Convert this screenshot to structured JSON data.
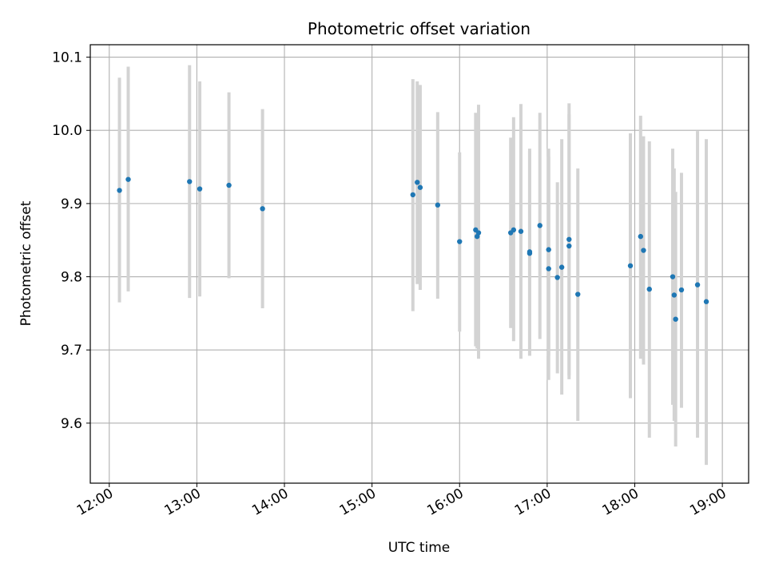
{
  "chart_data": {
    "type": "scatter",
    "title": "Photometric offset variation",
    "xlabel": "UTC time",
    "ylabel": "Photometric offset",
    "x_ticks": [
      "12:00",
      "13:00",
      "14:00",
      "15:00",
      "16:00",
      "17:00",
      "18:00",
      "19:00"
    ],
    "y_ticks": [
      "9.6",
      "9.7",
      "9.8",
      "9.9",
      "10.0",
      "10.1"
    ],
    "xlim": [
      "11:47",
      "19:18"
    ],
    "ylim": [
      9.518,
      10.117
    ],
    "grid": true,
    "colors": {
      "points": "#1f77b4",
      "errorbars": "#d3d3d3",
      "grid": "#b0b0b0"
    },
    "points": [
      {
        "t": "12:07",
        "y": 9.918,
        "lo": 9.765,
        "hi": 10.072
      },
      {
        "t": "12:13",
        "y": 9.933,
        "lo": 9.78,
        "hi": 10.087
      },
      {
        "t": "12:55",
        "y": 9.93,
        "lo": 9.771,
        "hi": 10.089
      },
      {
        "t": "13:02",
        "y": 9.92,
        "lo": 9.773,
        "hi": 10.067
      },
      {
        "t": "13:22",
        "y": 9.925,
        "lo": 9.798,
        "hi": 10.052
      },
      {
        "t": "13:45",
        "y": 9.893,
        "lo": 9.757,
        "hi": 10.029
      },
      {
        "t": "15:28",
        "y": 9.912,
        "lo": 9.753,
        "hi": 10.07
      },
      {
        "t": "15:31",
        "y": 9.929,
        "lo": 9.79,
        "hi": 10.067
      },
      {
        "t": "15:33",
        "y": 9.922,
        "lo": 9.782,
        "hi": 10.062
      },
      {
        "t": "15:45",
        "y": 9.898,
        "lo": 9.77,
        "hi": 10.025
      },
      {
        "t": "16:00",
        "y": 9.848,
        "lo": 9.725,
        "hi": 9.97
      },
      {
        "t": "16:11",
        "y": 9.864,
        "lo": 9.705,
        "hi": 10.024
      },
      {
        "t": "16:12",
        "y": 9.855,
        "lo": 9.702,
        "hi": 10.012
      },
      {
        "t": "16:13",
        "y": 9.86,
        "lo": 9.688,
        "hi": 10.035
      },
      {
        "t": "16:35",
        "y": 9.86,
        "lo": 9.73,
        "hi": 9.99
      },
      {
        "t": "16:37",
        "y": 9.864,
        "lo": 9.712,
        "hi": 10.018
      },
      {
        "t": "16:42",
        "y": 9.862,
        "lo": 9.688,
        "hi": 10.036
      },
      {
        "t": "16:48",
        "y": 9.834,
        "lo": 9.692,
        "hi": 9.975
      },
      {
        "t": "16:48",
        "y": 9.832,
        "lo": 9.692,
        "hi": 9.972
      },
      {
        "t": "16:55",
        "y": 9.87,
        "lo": 9.715,
        "hi": 10.024
      },
      {
        "t": "17:01",
        "y": 9.837,
        "lo": 9.692,
        "hi": 9.975
      },
      {
        "t": "17:01",
        "y": 9.811,
        "lo": 9.659,
        "hi": 9.964
      },
      {
        "t": "17:07",
        "y": 9.799,
        "lo": 9.668,
        "hi": 9.929
      },
      {
        "t": "17:10",
        "y": 9.813,
        "lo": 9.639,
        "hi": 9.988
      },
      {
        "t": "17:15",
        "y": 9.851,
        "lo": 9.665,
        "hi": 10.037
      },
      {
        "t": "17:15",
        "y": 9.842,
        "lo": 9.66,
        "hi": 10.022
      },
      {
        "t": "17:21",
        "y": 9.776,
        "lo": 9.603,
        "hi": 9.948
      },
      {
        "t": "17:57",
        "y": 9.815,
        "lo": 9.634,
        "hi": 9.996
      },
      {
        "t": "18:04",
        "y": 9.855,
        "lo": 9.688,
        "hi": 10.02
      },
      {
        "t": "18:06",
        "y": 9.836,
        "lo": 9.68,
        "hi": 9.992
      },
      {
        "t": "18:10",
        "y": 9.783,
        "lo": 9.58,
        "hi": 9.985
      },
      {
        "t": "18:26",
        "y": 9.8,
        "lo": 9.625,
        "hi": 9.975
      },
      {
        "t": "18:27",
        "y": 9.775,
        "lo": 9.603,
        "hi": 9.948
      },
      {
        "t": "18:28",
        "y": 9.742,
        "lo": 9.568,
        "hi": 9.916
      },
      {
        "t": "18:32",
        "y": 9.782,
        "lo": 9.621,
        "hi": 9.942
      },
      {
        "t": "18:43",
        "y": 9.789,
        "lo": 9.58,
        "hi": 9.999
      },
      {
        "t": "18:49",
        "y": 9.766,
        "lo": 9.543,
        "hi": 9.988
      }
    ]
  }
}
